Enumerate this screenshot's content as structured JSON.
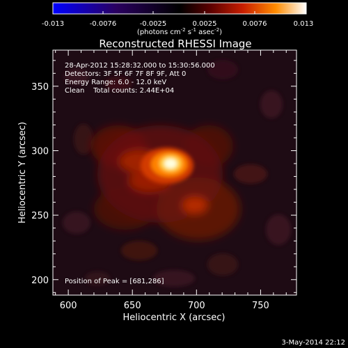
{
  "colorbar": {
    "ticks": [
      "-0.013",
      "-0.0076",
      "-0.0025",
      "0.0025",
      "0.0076",
      "0.013"
    ],
    "units_prefix": "(photons cm",
    "units_exp1": "-2",
    "units_mid": " s",
    "units_exp2": "-1",
    "units_mid2": " asec",
    "units_exp3": "-2",
    "units_suffix": ")"
  },
  "title": "Reconstructed RHESSI Image",
  "info": {
    "line1": "28-Apr-2012 15:28:32.000 to 15:30:56.000",
    "line2": "Detectors: 3F 5F 6F 7F 8F 9F, Att 0",
    "line3": "Energy Range: 6.0 - 12.0 keV",
    "line4": "Clean    Total counts: 2.44E+04",
    "peak": "Position of Peak = [681,286]"
  },
  "xaxis": {
    "label": "Heliocentric X (arcsec)",
    "ticks": [
      "600",
      "650",
      "700",
      "750"
    ],
    "tick_values": [
      600,
      650,
      700,
      750
    ],
    "range": [
      588,
      778
    ]
  },
  "yaxis": {
    "label": "Heliocentric Y (arcsec)",
    "ticks": [
      "200",
      "250",
      "300",
      "350"
    ],
    "tick_values": [
      200,
      250,
      300,
      350
    ],
    "range": [
      188,
      378
    ]
  },
  "peak_position": [
    681,
    286
  ],
  "timestamp": "3-May-2014 22:12"
}
